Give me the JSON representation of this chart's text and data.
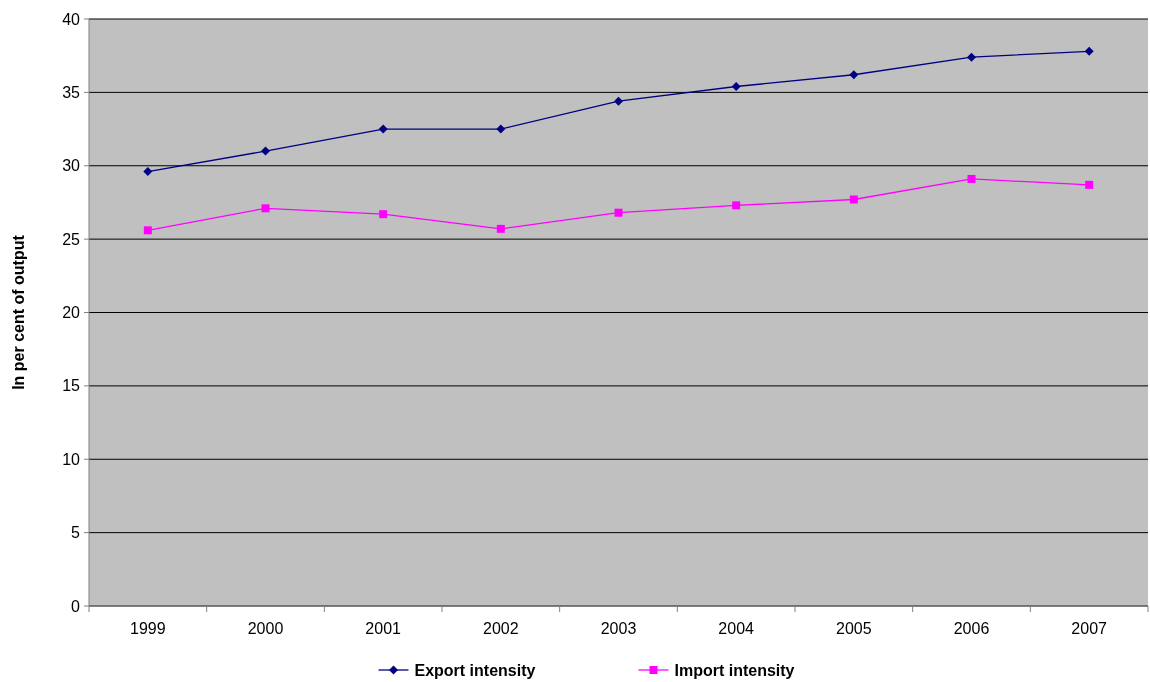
{
  "chart_data": {
    "type": "line",
    "ylabel": "In per cent of output",
    "categories": [
      "1999",
      "2000",
      "2001",
      "2002",
      "2003",
      "2004",
      "2005",
      "2006",
      "2007"
    ],
    "series": [
      {
        "name": "Export intensity",
        "color": "#000080",
        "marker": "diamond",
        "values": [
          29.6,
          31.0,
          32.5,
          32.5,
          34.4,
          35.4,
          36.2,
          37.4,
          37.8
        ]
      },
      {
        "name": "Import intensity",
        "color": "#ff00ff",
        "marker": "square",
        "values": [
          25.6,
          27.1,
          26.7,
          25.7,
          26.8,
          27.3,
          27.7,
          29.1,
          28.7
        ]
      }
    ],
    "ylim": [
      0,
      40
    ],
    "yticks": [
      0,
      5,
      10,
      15,
      20,
      25,
      30,
      35,
      40
    ],
    "grid": "y",
    "legend": "bottom",
    "line_style": "solid"
  }
}
